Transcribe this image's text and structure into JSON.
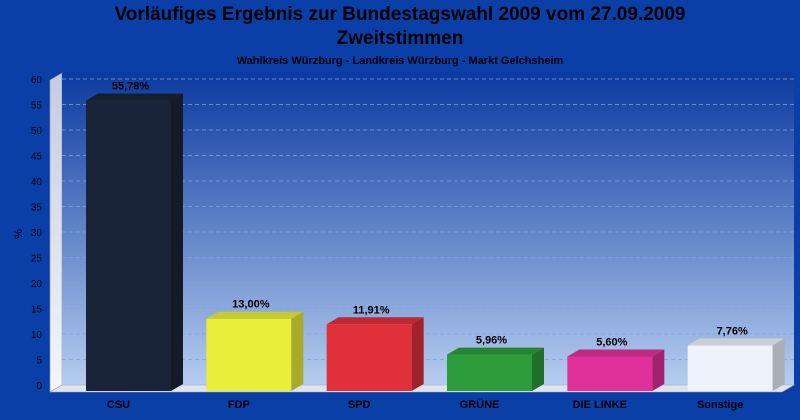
{
  "header": {
    "title_line1": "Vorläufiges Ergebnis zur Bundestagswahl 2009 vom 27.09.2009",
    "title_line2": "Zweitstimmen",
    "subtitle": "Wahlkreis Würzburg - Landkreis Würzburg - Markt Gelchsheim"
  },
  "chart_data": {
    "type": "bar",
    "title": "Vorläufiges Ergebnis zur Bundestagswahl 2009 vom 27.09.2009",
    "subtitle": "Wahlkreis Würzburg - Landkreis Würzburg - Markt Gelchsheim",
    "xlabel": "",
    "ylabel": "%",
    "ylim": [
      0,
      60
    ],
    "yticks": [
      0,
      5,
      10,
      15,
      20,
      25,
      30,
      35,
      40,
      45,
      50,
      55,
      60
    ],
    "grid": true,
    "categories": [
      "CSU",
      "FDP",
      "SPD",
      "GRÜNE",
      "DIE LINKE",
      "Sonstige"
    ],
    "values": [
      55.78,
      13.0,
      11.91,
      5.96,
      5.6,
      7.76
    ],
    "value_labels": [
      "55,78%",
      "13,00%",
      "11,91%",
      "5,96%",
      "5,60%",
      "7,76%"
    ],
    "colors": [
      "#1a2438",
      "#e8ee3a",
      "#e0303a",
      "#2c9c3a",
      "#e0309a",
      "#eef2fa"
    ]
  }
}
